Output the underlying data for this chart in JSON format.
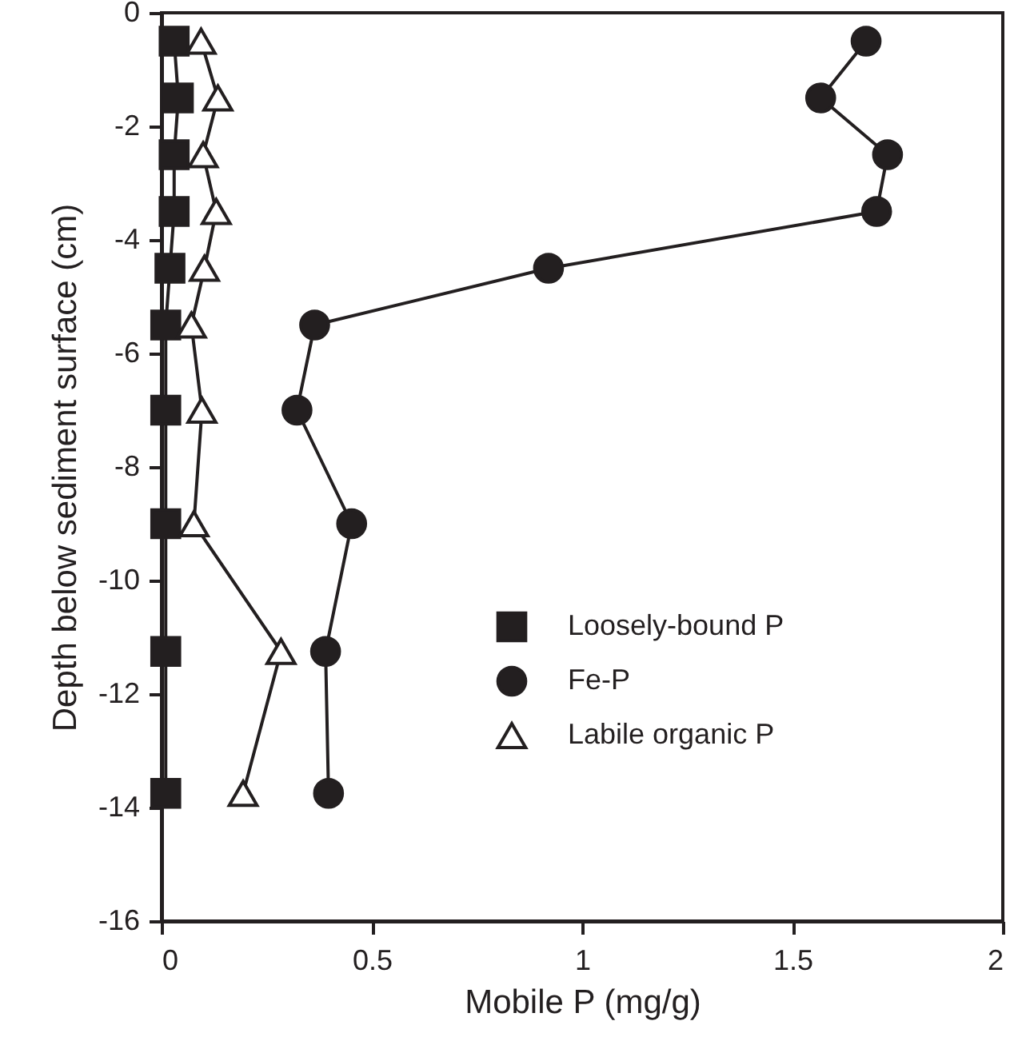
{
  "chart_data": {
    "type": "line",
    "xlabel": "Mobile P (mg/g)",
    "ylabel": "Depth below sediment surface (cm)",
    "xlim": [
      0,
      2
    ],
    "xticks": [
      0,
      0.5,
      1,
      1.5,
      2
    ],
    "ylim": [
      -16,
      0
    ],
    "yticks": [
      0,
      -2,
      -4,
      -6,
      -8,
      -10,
      -12,
      -14,
      -16
    ],
    "legend": "right",
    "grid": false,
    "line_style": "solid",
    "series": [
      {
        "name": "Loosely-bound P",
        "color": "#231f20",
        "marker": "square",
        "x": [
          0.03,
          0.04,
          0.03,
          0.03,
          0.02,
          0.01,
          0.01,
          0.01,
          0.01,
          0.01
        ],
        "values": [
          -0.5,
          -1.5,
          -2.5,
          -3.5,
          -4.5,
          -5.5,
          -7,
          -9,
          -11.25,
          -13.75
        ]
      },
      {
        "name": "Fe-P",
        "color": "#231f20",
        "marker": "circle",
        "x": [
          1.675,
          1.567,
          1.726,
          1.7,
          0.92,
          0.364,
          0.322,
          0.452,
          0.39,
          0.397
        ],
        "values": [
          -0.5,
          -1.5,
          -2.5,
          -3.5,
          -4.5,
          -5.5,
          -7,
          -9,
          -11.25,
          -13.75
        ]
      },
      {
        "name": "Labile organic P",
        "color": "#231f20",
        "marker": "triangle",
        "x": [
          0.094,
          0.134,
          0.099,
          0.13,
          0.102,
          0.071,
          0.096,
          0.077,
          0.284,
          0.194
        ],
        "values": [
          -0.5,
          -1.5,
          -2.5,
          -3.5,
          -4.5,
          -5.5,
          -7,
          -9,
          -11.25,
          -13.75
        ]
      }
    ]
  }
}
